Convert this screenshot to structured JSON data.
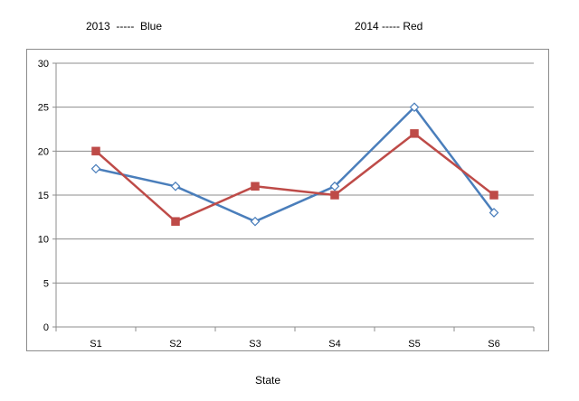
{
  "header": {
    "note_2013": "2013  -----  Blue",
    "note_2014": "2014 ----- Red"
  },
  "chart_data": {
    "type": "line",
    "categories": [
      "S1",
      "S2",
      "S3",
      "S4",
      "S5",
      "S6"
    ],
    "series": [
      {
        "values": [
          18,
          16,
          12,
          16,
          25,
          13
        ],
        "color": "#4a7ebb",
        "marker": "diamond-open"
      },
      {
        "values": [
          20,
          12,
          16,
          15,
          22,
          15
        ],
        "color": "#be4b48",
        "marker": "square-filled"
      }
    ],
    "title": "",
    "xlabel": "State",
    "ylabel": "",
    "ylim": [
      0,
      30
    ],
    "yticks": [
      0,
      5,
      10,
      15,
      20,
      25,
      30
    ],
    "grid": true,
    "legend": "none"
  }
}
